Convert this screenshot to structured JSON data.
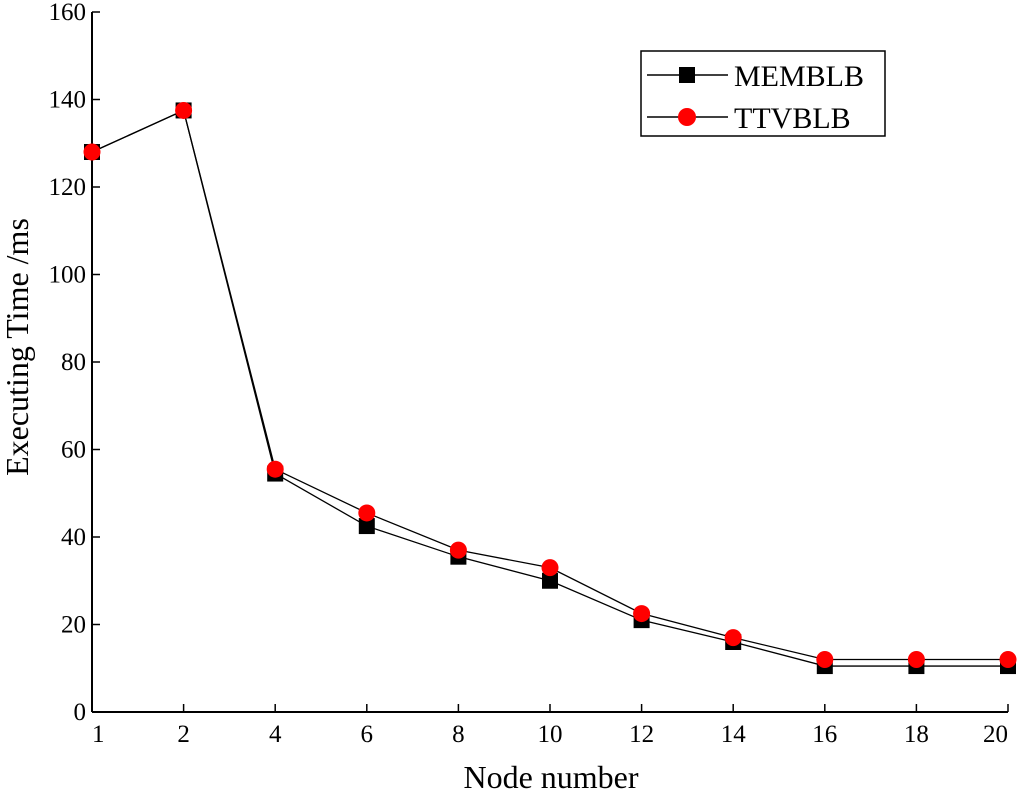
{
  "chart_data": {
    "type": "line",
    "title": "",
    "xlabel": "Node number",
    "ylabel": "Executing Time /ms",
    "x": [
      1,
      2,
      4,
      6,
      8,
      10,
      12,
      14,
      16,
      18,
      20
    ],
    "x_tick_labels": [
      "1",
      "2",
      "4",
      "6",
      "8",
      "10",
      "12",
      "14",
      "16",
      "18",
      "20"
    ],
    "y_tick_labels": [
      "0",
      "20",
      "40",
      "60",
      "80",
      "100",
      "120",
      "140",
      "160"
    ],
    "ylim": [
      0,
      160
    ],
    "grid": false,
    "legend_position": "top-right",
    "series": [
      {
        "name": "MEMBLB",
        "marker": "square",
        "color": "#000000",
        "values": [
          128,
          137.5,
          54.5,
          42.5,
          35.5,
          30,
          21,
          16,
          10.5,
          10.5,
          10.5
        ]
      },
      {
        "name": "TTVBLB",
        "marker": "circle",
        "color": "#ff0000",
        "values": [
          128,
          137.5,
          55.5,
          45.5,
          37,
          33,
          22.5,
          17,
          12,
          12,
          12
        ]
      }
    ]
  }
}
